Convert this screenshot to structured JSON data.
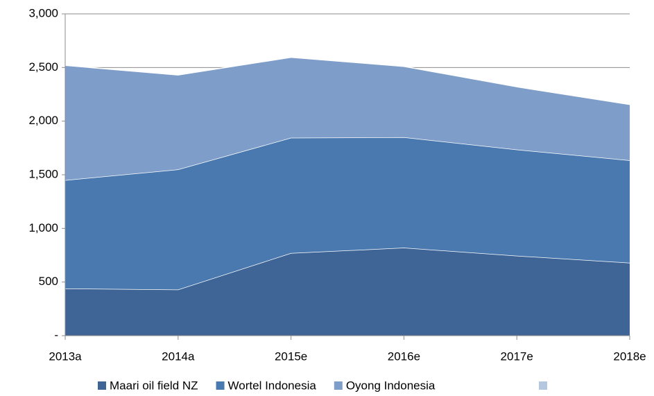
{
  "chart_data": {
    "type": "stacked_area",
    "categories": [
      "2013a",
      "2014a",
      "2015e",
      "2016e",
      "2017e",
      "2018e"
    ],
    "series": [
      {
        "name": "Maari oil field NZ",
        "color": "#3e6595",
        "values": [
          440,
          430,
          770,
          820,
          745,
          680
        ]
      },
      {
        "name": "Wortel Indonesia",
        "color": "#4a79b0",
        "values": [
          1010,
          1120,
          1075,
          1030,
          990,
          955
        ]
      },
      {
        "name": "Oyong Indonesia",
        "color": "#7e9dc9",
        "values": [
          1070,
          880,
          750,
          660,
          585,
          520
        ]
      }
    ],
    "ylim": [
      0,
      3000
    ],
    "yticks": [
      {
        "value": 0,
        "label": "-"
      },
      500,
      {
        "value": 1000,
        "label": "1,000"
      },
      {
        "value": 1500,
        "label": "1,500"
      },
      {
        "value": 2000,
        "label": "2,000"
      },
      {
        "value": 2500,
        "label": "2,500"
      },
      {
        "value": 3000,
        "label": "3,000"
      }
    ],
    "grid": true,
    "legend": "bottom"
  }
}
